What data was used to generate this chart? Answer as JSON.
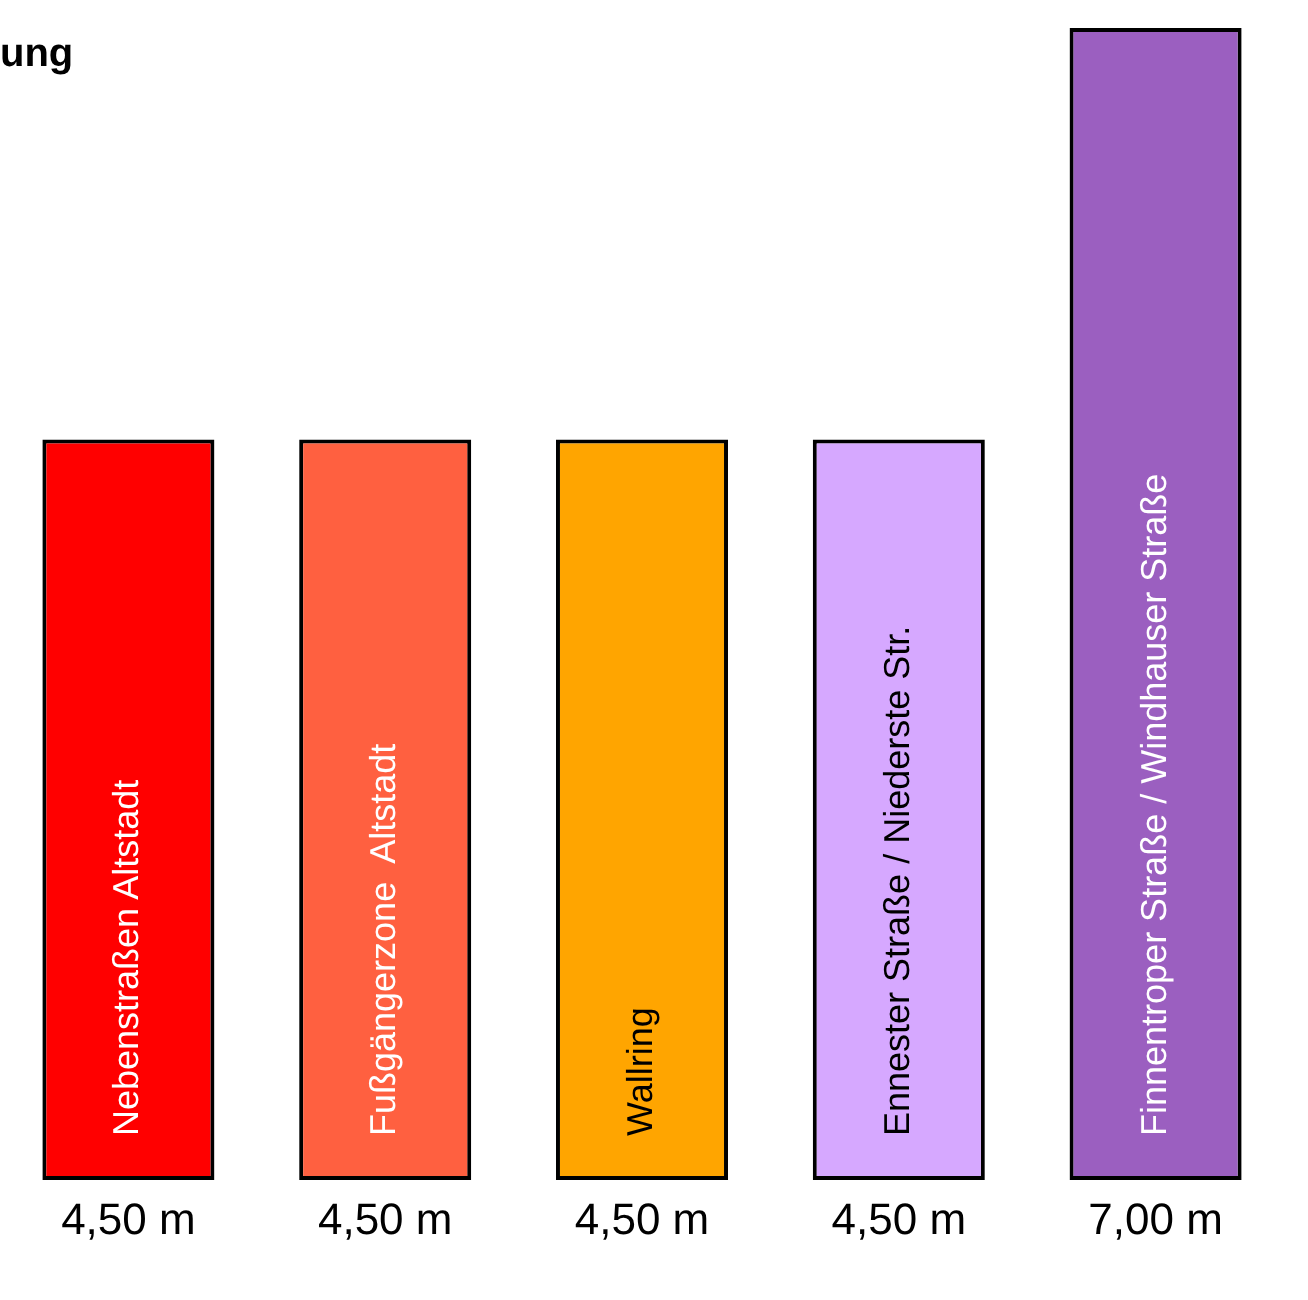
{
  "chart_data": {
    "type": "bar",
    "title": "ung",
    "categories": [
      "Nebenstraßen Altstadt",
      "Fußgängerzone  Altstadt",
      "Wallring",
      "Ennester Straße / Niederste Str.",
      "Finnentroper Straße / Windhauser Straße"
    ],
    "values": [
      4.5,
      4.5,
      4.5,
      4.5,
      7
    ],
    "colors": [
      "#ff0000",
      "#ff6040",
      "#ffa500",
      "#d6a8ff",
      "#9b5fc0"
    ],
    "value_labels": [
      "4,50 m",
      "4,50 m",
      "4,50 m",
      "4,50 m",
      "7,00 m"
    ],
    "tick_labels": false
  }
}
